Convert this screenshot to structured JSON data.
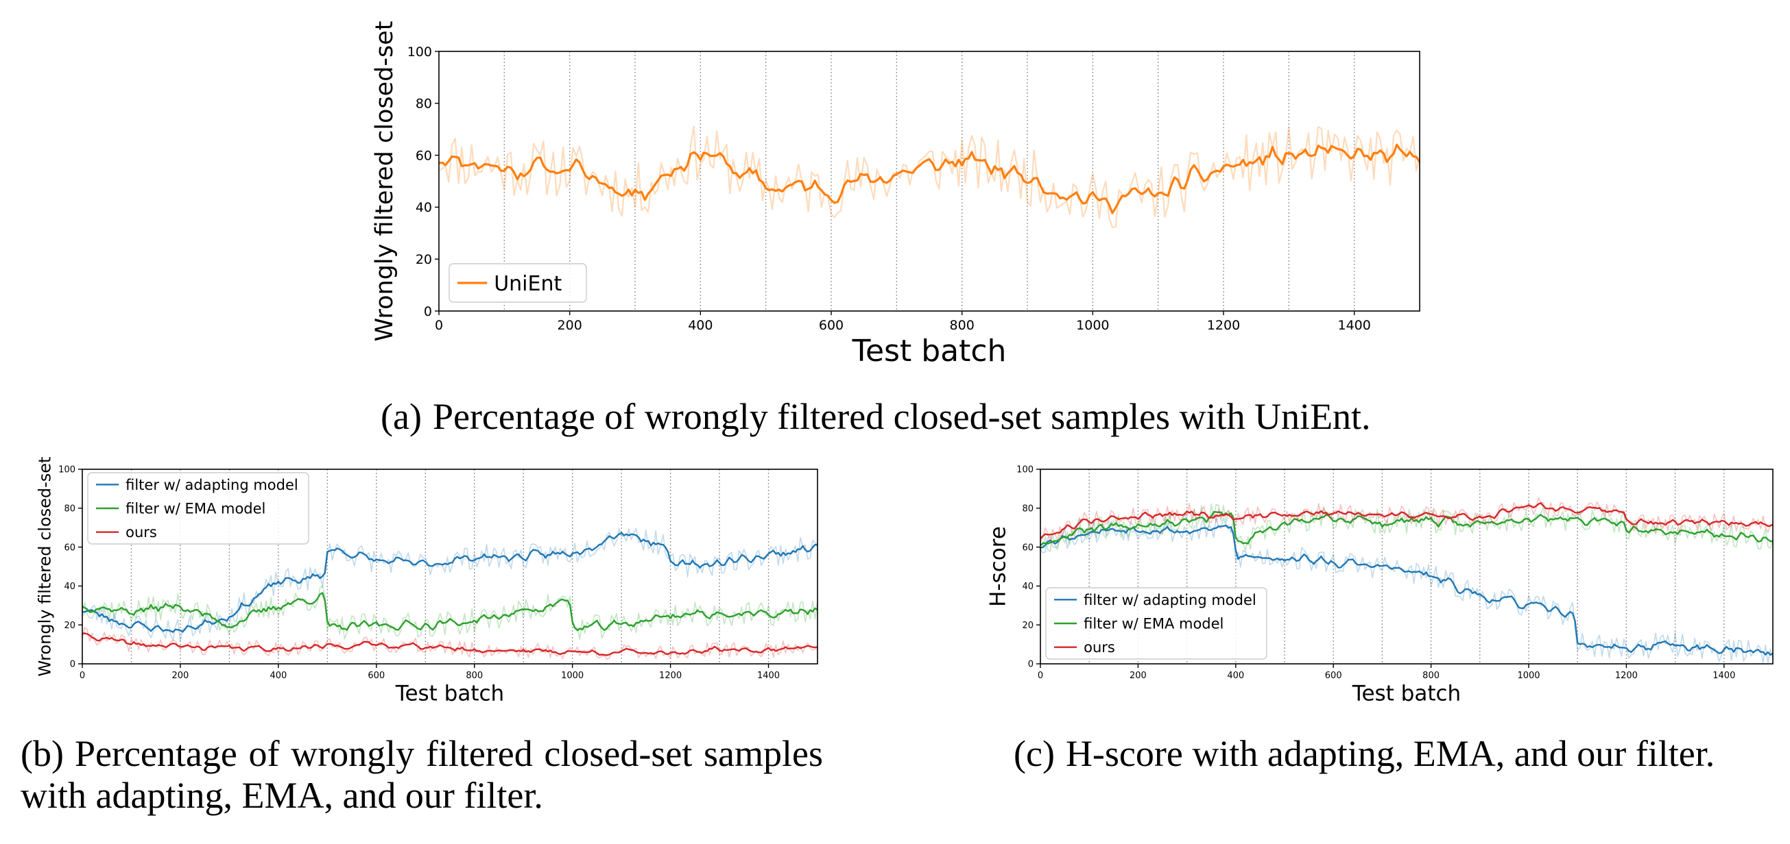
{
  "captions": {
    "a": {
      "tag": "(a)",
      "text": "Percentage of wrongly filtered closed-set samples with UniEnt."
    },
    "b": {
      "tag": "(b)",
      "text": "Percentage of wrongly filtered closed-set samples with adapting, EMA, and our filter."
    },
    "c": {
      "tag": "(c)",
      "text": "H-score with adapting, EMA, and our filter."
    }
  },
  "colors": {
    "UniEnt": "#ff7f0e",
    "filter w/ adapting model": "#1f77b4",
    "filter w/ EMA model": "#2ca02c",
    "ours": "#d62728",
    "axis": "#000000",
    "vgrid": "#999999"
  },
  "chart_data": [
    {
      "id": "a",
      "type": "line",
      "xlabel": "Test batch",
      "ylabel": "Wrongly filtered closed-set",
      "xlim": [
        0,
        1500
      ],
      "ylim": [
        0,
        100
      ],
      "xticks": [
        0,
        200,
        400,
        600,
        800,
        1000,
        1200,
        1400
      ],
      "yticks": [
        0,
        20,
        40,
        60,
        80,
        100
      ],
      "vlines": [
        100,
        200,
        300,
        400,
        500,
        600,
        700,
        800,
        900,
        1000,
        1100,
        1200,
        1300,
        1400
      ],
      "legend": "lower-left",
      "series": [
        {
          "name": "UniEnt",
          "color": "#ff7f0e",
          "x": [
            0,
            100,
            200,
            300,
            400,
            500,
            600,
            700,
            800,
            900,
            1000,
            1100,
            1200,
            1300,
            1400,
            1500
          ],
          "y": [
            60,
            55,
            55,
            45,
            62,
            48,
            47,
            53,
            58,
            52,
            42,
            45,
            55,
            60,
            60,
            58
          ],
          "noise": 7,
          "seed": 11
        }
      ]
    },
    {
      "id": "b",
      "type": "line",
      "xlabel": "Test batch",
      "ylabel": "Wrongly filtered closed-set",
      "xlim": [
        0,
        1500
      ],
      "ylim": [
        0,
        100
      ],
      "xticks": [
        0,
        200,
        400,
        600,
        800,
        1000,
        1200,
        1400
      ],
      "yticks": [
        0,
        20,
        40,
        60,
        80,
        100
      ],
      "vlines": [
        100,
        200,
        300,
        400,
        500,
        600,
        700,
        800,
        900,
        1000,
        1100,
        1200,
        1300,
        1400
      ],
      "legend": "top-left",
      "series": [
        {
          "name": "filter w/ adapting model",
          "color": "#1f77b4",
          "x": [
            0,
            100,
            200,
            300,
            400,
            499,
            500,
            600,
            700,
            800,
            900,
            1000,
            1100,
            1199,
            1200,
            1300,
            1400,
            1500
          ],
          "y": [
            28,
            20,
            17,
            25,
            42,
            45,
            60,
            53,
            51,
            55,
            55,
            57,
            68,
            60,
            50,
            52,
            56,
            60
          ],
          "noise": 4,
          "seed": 23
        },
        {
          "name": "filter w/ EMA model",
          "color": "#2ca02c",
          "x": [
            0,
            100,
            200,
            300,
            400,
            499,
            500,
            600,
            700,
            800,
            900,
            999,
            1000,
            1100,
            1200,
            1300,
            1400,
            1500
          ],
          "y": [
            30,
            27,
            30,
            20,
            30,
            35,
            18,
            20,
            20,
            22,
            27,
            33,
            18,
            20,
            25,
            26,
            25,
            28
          ],
          "noise": 4,
          "seed": 37
        },
        {
          "name": "ours",
          "color": "#d62728",
          "x": [
            0,
            100,
            200,
            300,
            400,
            500,
            600,
            700,
            800,
            900,
            1000,
            1100,
            1200,
            1300,
            1400,
            1500
          ],
          "y": [
            15,
            10,
            9,
            8,
            8,
            9,
            10,
            9,
            7,
            7,
            6,
            6,
            6,
            7,
            7,
            10
          ],
          "noise": 2.5,
          "seed": 41
        }
      ]
    },
    {
      "id": "c",
      "type": "line",
      "xlabel": "Test batch",
      "ylabel": "H-score",
      "xlim": [
        0,
        1500
      ],
      "ylim": [
        0,
        100
      ],
      "xticks": [
        0,
        200,
        400,
        600,
        800,
        1000,
        1200,
        1400
      ],
      "yticks": [
        0,
        20,
        40,
        60,
        80,
        100
      ],
      "vlines": [
        100,
        200,
        300,
        400,
        500,
        600,
        700,
        800,
        900,
        1000,
        1100,
        1200,
        1300,
        1400
      ],
      "legend": "lower-left",
      "series": [
        {
          "name": "filter w/ adapting model",
          "color": "#1f77b4",
          "x": [
            0,
            100,
            200,
            300,
            399,
            400,
            500,
            600,
            700,
            800,
            900,
            1000,
            1099,
            1100,
            1200,
            1300,
            1400,
            1500
          ],
          "y": [
            62,
            68,
            70,
            68,
            70,
            55,
            55,
            52,
            50,
            45,
            35,
            30,
            25,
            10,
            8,
            10,
            7,
            6
          ],
          "noise": 4,
          "seed": 53
        },
        {
          "name": "filter w/ EMA model",
          "color": "#2ca02c",
          "x": [
            0,
            100,
            200,
            300,
            399,
            400,
            500,
            600,
            700,
            800,
            900,
            1000,
            1100,
            1199,
            1200,
            1300,
            1400,
            1500
          ],
          "y": [
            62,
            70,
            72,
            74,
            78,
            60,
            72,
            75,
            73,
            73,
            72,
            75,
            74,
            72,
            68,
            68,
            66,
            65
          ],
          "noise": 4,
          "seed": 67
        },
        {
          "name": "ours",
          "color": "#d62728",
          "x": [
            0,
            100,
            200,
            300,
            400,
            500,
            600,
            700,
            800,
            900,
            1000,
            1100,
            1199,
            1200,
            1300,
            1400,
            1500
          ],
          "y": [
            65,
            74,
            76,
            78,
            75,
            77,
            78,
            77,
            76,
            75,
            82,
            79,
            78,
            73,
            72,
            73,
            72
          ],
          "noise": 3,
          "seed": 79
        }
      ]
    }
  ]
}
